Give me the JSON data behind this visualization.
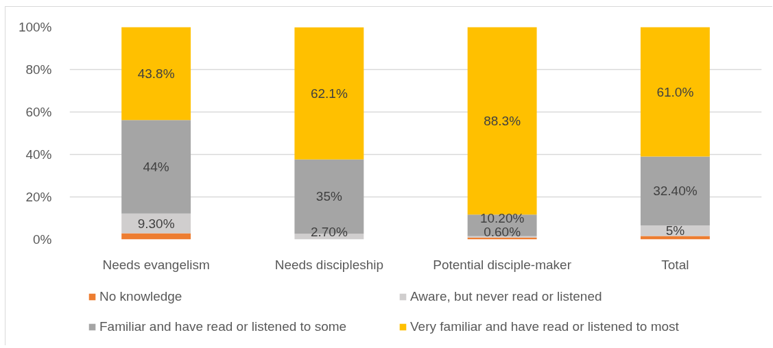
{
  "chart_data": {
    "type": "bar",
    "stacked": true,
    "categories": [
      "Needs evangelism",
      "Needs discipleship",
      "Potential disciple-maker",
      "Total"
    ],
    "ylim": [
      0,
      100
    ],
    "yticks": [
      {
        "value": 0,
        "label": "0%"
      },
      {
        "value": 20,
        "label": "20%"
      },
      {
        "value": 40,
        "label": "40%"
      },
      {
        "value": 60,
        "label": "60%"
      },
      {
        "value": 80,
        "label": "80%"
      },
      {
        "value": 100,
        "label": "100%"
      }
    ],
    "grid": "y",
    "legend": "bottom",
    "series": [
      {
        "name": "No knowledge",
        "color": "#ed7d31",
        "values": [
          2.9,
          null,
          0.9,
          1.6
        ]
      },
      {
        "name": "Aware, but never read or listened",
        "color": "#d0cece",
        "values": [
          9.3,
          2.7,
          0.6,
          5
        ],
        "value_labels": [
          "9.30%",
          "2.70%",
          "0.60%",
          "5%"
        ]
      },
      {
        "name": "Familiar and have read or listened to some",
        "color": "#a5a5a5",
        "values": [
          44,
          35,
          10.2,
          32.4
        ],
        "value_labels": [
          "44%",
          "35%",
          "10.20%",
          "32.40%"
        ]
      },
      {
        "name": "Very familiar and have read or listened to most",
        "color": "#ffc000",
        "values": [
          43.8,
          62.1,
          88.3,
          61.0
        ],
        "value_labels": [
          "43.8%",
          "62.1%",
          "88.3%",
          "61.0%"
        ]
      }
    ]
  }
}
